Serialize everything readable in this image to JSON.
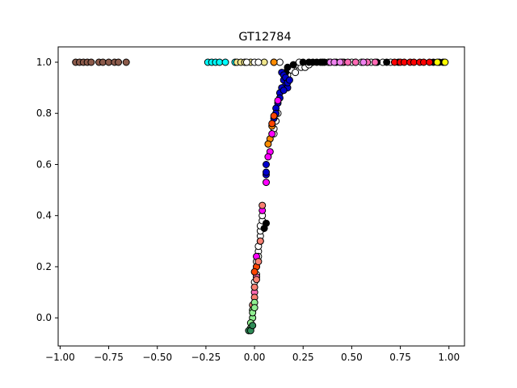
{
  "chart_data": {
    "type": "scatter",
    "title": "GT12784",
    "xlabel": "",
    "ylabel": "",
    "xlim": [
      -1.01,
      1.08
    ],
    "ylim": [
      -0.11,
      1.06
    ],
    "grid": false,
    "legend": "none",
    "x_ticks": [
      -1.0,
      -0.75,
      -0.5,
      -0.25,
      0.0,
      0.25,
      0.5,
      0.75,
      1.0
    ],
    "x_tick_labels": [
      "−1.00",
      "−0.75",
      "−0.50",
      "−0.25",
      "0.00",
      "0.25",
      "0.50",
      "0.75",
      "1.00"
    ],
    "y_ticks": [
      0.0,
      0.2,
      0.4,
      0.6,
      0.8,
      1.0
    ],
    "y_tick_labels": [
      "0.0",
      "0.2",
      "0.4",
      "0.6",
      "0.8",
      "1.0"
    ],
    "series": [
      {
        "color": "#8B5A4A",
        "points": [
          [
            -0.92,
            1.0
          ],
          [
            -0.9,
            1.0
          ],
          [
            -0.88,
            1.0
          ],
          [
            -0.86,
            1.0
          ],
          [
            -0.84,
            1.0
          ],
          [
            -0.8,
            1.0
          ],
          [
            -0.78,
            1.0
          ],
          [
            -0.75,
            1.0
          ],
          [
            -0.72,
            1.0
          ],
          [
            -0.7,
            1.0
          ],
          [
            -0.66,
            1.0
          ]
        ]
      },
      {
        "color": "#00FFFF",
        "points": [
          [
            -0.24,
            1.0
          ],
          [
            -0.22,
            1.0
          ],
          [
            -0.2,
            1.0
          ],
          [
            -0.18,
            1.0
          ],
          [
            -0.15,
            1.0
          ],
          [
            -0.1,
            1.0
          ]
        ]
      },
      {
        "color": "#F0E68C",
        "points": [
          [
            -0.09,
            1.0
          ],
          [
            -0.07,
            1.0
          ],
          [
            -0.05,
            1.0
          ],
          [
            -0.02,
            1.0
          ],
          [
            0.05,
            1.0
          ],
          [
            0.1,
            1.0
          ]
        ]
      },
      {
        "color": "#FFFFFF",
        "points": [
          [
            -0.04,
            1.0
          ],
          [
            0.0,
            1.0
          ],
          [
            0.02,
            1.0
          ],
          [
            0.13,
            1.0
          ],
          [
            0.2,
            0.98
          ],
          [
            0.22,
            0.99
          ],
          [
            0.24,
            0.98
          ],
          [
            0.26,
            0.98
          ],
          [
            0.28,
            0.99
          ],
          [
            0.19,
            0.97
          ],
          [
            0.21,
            0.96
          ],
          [
            0.17,
            0.95
          ],
          [
            0.23,
            1.0
          ],
          [
            0.35,
            1.0
          ],
          [
            0.38,
            1.0
          ],
          [
            0.5,
            1.0
          ],
          [
            0.55,
            1.0
          ],
          [
            0.6,
            1.0
          ],
          [
            0.66,
            1.0
          ],
          [
            0.7,
            1.0
          ],
          [
            0.02,
            0.26
          ],
          [
            0.02,
            0.28
          ],
          [
            0.03,
            0.3
          ],
          [
            0.03,
            0.32
          ],
          [
            0.03,
            0.34
          ],
          [
            0.03,
            0.36
          ],
          [
            0.04,
            0.38
          ],
          [
            0.04,
            0.4
          ],
          [
            0.01,
            0.2
          ],
          [
            0.01,
            0.22
          ],
          [
            0.02,
            0.24
          ],
          [
            0.0,
            0.14
          ],
          [
            0.01,
            0.17
          ],
          [
            0.1,
            0.72
          ],
          [
            0.1,
            0.74
          ],
          [
            0.11,
            0.77
          ],
          [
            0.12,
            0.8
          ]
        ]
      },
      {
        "color": "#000000",
        "points": [
          [
            0.25,
            1.0
          ],
          [
            0.28,
            1.0
          ],
          [
            0.3,
            1.0
          ],
          [
            0.32,
            1.0
          ],
          [
            0.34,
            1.0
          ],
          [
            0.36,
            1.0
          ],
          [
            0.39,
            1.0
          ],
          [
            0.42,
            1.0
          ],
          [
            0.46,
            1.0
          ],
          [
            0.52,
            1.0
          ],
          [
            0.58,
            1.0
          ],
          [
            0.63,
            1.0
          ],
          [
            0.68,
            1.0
          ],
          [
            0.74,
            1.0
          ],
          [
            0.92,
            1.0
          ],
          [
            0.95,
            1.0
          ],
          [
            0.97,
            1.0
          ],
          [
            0.2,
            0.99
          ],
          [
            0.17,
            0.98
          ],
          [
            0.16,
            0.96
          ],
          [
            0.05,
            0.35
          ],
          [
            0.06,
            0.37
          ]
        ]
      },
      {
        "color": "#FF8C00",
        "points": [
          [
            0.1,
            1.0
          ],
          [
            0.08,
            0.7
          ],
          [
            0.09,
            0.75
          ],
          [
            0.07,
            0.68
          ]
        ]
      },
      {
        "color": "#FF69B4",
        "points": [
          [
            0.45,
            1.0
          ],
          [
            0.48,
            1.0
          ],
          [
            0.52,
            1.0
          ],
          [
            0.58,
            1.0
          ],
          [
            0.62,
            1.0
          ],
          [
            0.0,
            0.1
          ],
          [
            0.01,
            0.16
          ]
        ]
      },
      {
        "color": "#EE82EE",
        "points": [
          [
            0.39,
            1.0
          ],
          [
            0.41,
            1.0
          ],
          [
            0.44,
            1.0
          ],
          [
            0.56,
            1.0
          ]
        ]
      },
      {
        "color": "#FF0000",
        "points": [
          [
            0.72,
            1.0
          ],
          [
            0.75,
            1.0
          ],
          [
            0.77,
            1.0
          ],
          [
            0.8,
            1.0
          ],
          [
            0.82,
            1.0
          ],
          [
            0.85,
            1.0
          ],
          [
            0.87,
            1.0
          ],
          [
            0.9,
            1.0
          ]
        ]
      },
      {
        "color": "#FFFF00",
        "points": [
          [
            0.94,
            1.0
          ],
          [
            0.98,
            1.0
          ]
        ]
      },
      {
        "color": "#0000CD",
        "points": [
          [
            0.14,
            0.96
          ],
          [
            0.15,
            0.95
          ],
          [
            0.15,
            0.93
          ],
          [
            0.16,
            0.91
          ],
          [
            0.16,
            0.94
          ],
          [
            0.14,
            0.9
          ],
          [
            0.13,
            0.88
          ],
          [
            0.13,
            0.86
          ],
          [
            0.12,
            0.84
          ],
          [
            0.11,
            0.82
          ],
          [
            0.11,
            0.8
          ],
          [
            0.1,
            0.78
          ],
          [
            0.17,
            0.9
          ],
          [
            0.17,
            0.92
          ],
          [
            0.18,
            0.93
          ],
          [
            0.15,
            0.89
          ],
          [
            0.06,
            0.6
          ],
          [
            0.06,
            0.56
          ],
          [
            0.06,
            0.57
          ]
        ]
      },
      {
        "color": "#FF00FF",
        "points": [
          [
            0.12,
            0.85
          ],
          [
            0.08,
            0.65
          ],
          [
            0.07,
            0.63
          ],
          [
            0.06,
            0.53
          ],
          [
            0.09,
            0.72
          ],
          [
            0.04,
            0.42
          ],
          [
            0.01,
            0.24
          ]
        ]
      },
      {
        "color": "#FF4500",
        "points": [
          [
            0.09,
            0.76
          ],
          [
            0.1,
            0.79
          ],
          [
            0.01,
            0.2
          ],
          [
            0.0,
            0.18
          ]
        ]
      },
      {
        "color": "#FA8072",
        "points": [
          [
            0.04,
            0.44
          ],
          [
            0.03,
            0.3
          ],
          [
            0.01,
            0.15
          ],
          [
            0.0,
            0.12
          ],
          [
            0.0,
            0.08
          ],
          [
            -0.01,
            0.05
          ],
          [
            0.02,
            0.22
          ]
        ]
      },
      {
        "color": "#90EE90",
        "points": [
          [
            0.0,
            0.06
          ],
          [
            -0.01,
            0.03
          ],
          [
            -0.01,
            0.0
          ],
          [
            -0.02,
            -0.02
          ],
          [
            -0.02,
            -0.04
          ],
          [
            -0.01,
            0.02
          ],
          [
            0.0,
            0.04
          ]
        ]
      },
      {
        "color": "#2E8B57",
        "points": [
          [
            -0.03,
            -0.05
          ],
          [
            -0.02,
            -0.05
          ],
          [
            -0.01,
            -0.03
          ]
        ]
      }
    ]
  }
}
